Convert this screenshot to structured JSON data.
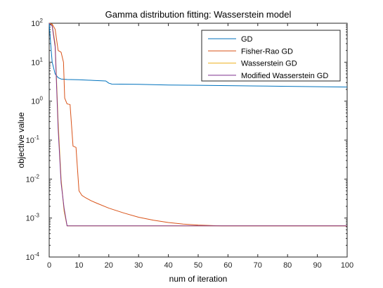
{
  "chart_data": {
    "type": "line",
    "title": "Gamma distribution fitting: Wasserstein model",
    "xlabel": "num of iteration",
    "ylabel": "objective value",
    "xlim": [
      0,
      100
    ],
    "ylim": [
      0.0001,
      100
    ],
    "yscale": "log",
    "x_ticks": [
      "0",
      "10",
      "20",
      "30",
      "40",
      "50",
      "60",
      "70",
      "80",
      "90",
      "100"
    ],
    "y_ticks": [
      {
        "base": "10",
        "exp": "2",
        "value": 100
      },
      {
        "base": "10",
        "exp": "1",
        "value": 10
      },
      {
        "base": "10",
        "exp": "0",
        "value": 1
      },
      {
        "base": "10",
        "exp": "-1",
        "value": 0.1
      },
      {
        "base": "10",
        "exp": "-2",
        "value": 0.01
      },
      {
        "base": "10",
        "exp": "-3",
        "value": 0.001
      },
      {
        "base": "10",
        "exp": "-4",
        "value": 0.0001
      }
    ],
    "grid": false,
    "legend_position": "top-right",
    "series": [
      {
        "name": "GD",
        "color": "#0072BD",
        "points": [
          [
            0,
            100
          ],
          [
            0.5,
            30
          ],
          [
            1,
            10
          ],
          [
            2,
            5
          ],
          [
            3,
            4
          ],
          [
            4,
            3.7
          ],
          [
            6,
            3.6
          ],
          [
            10,
            3.55
          ],
          [
            15,
            3.4
          ],
          [
            19,
            3.3
          ],
          [
            20,
            2.9
          ],
          [
            21,
            2.75
          ],
          [
            30,
            2.7
          ],
          [
            40,
            2.6
          ],
          [
            50,
            2.55
          ],
          [
            60,
            2.5
          ],
          [
            70,
            2.45
          ],
          [
            80,
            2.4
          ],
          [
            90,
            2.35
          ],
          [
            100,
            2.3
          ]
        ]
      },
      {
        "name": "Fisher-Rao GD",
        "color": "#D95319",
        "points": [
          [
            0,
            100
          ],
          [
            1,
            95
          ],
          [
            2,
            70
          ],
          [
            3,
            20
          ],
          [
            4,
            18
          ],
          [
            4.8,
            10
          ],
          [
            5.2,
            1.2
          ],
          [
            6,
            0.85
          ],
          [
            7,
            0.82
          ],
          [
            8,
            0.07
          ],
          [
            9,
            0.065
          ],
          [
            10,
            0.005
          ],
          [
            11,
            0.0038
          ],
          [
            12,
            0.0034
          ],
          [
            14,
            0.0028
          ],
          [
            16,
            0.0024
          ],
          [
            20,
            0.0018
          ],
          [
            25,
            0.00135
          ],
          [
            30,
            0.00105
          ],
          [
            35,
            0.00088
          ],
          [
            40,
            0.00077
          ],
          [
            45,
            0.0007
          ],
          [
            50,
            0.00066
          ],
          [
            55,
            0.00064
          ],
          [
            58,
            0.00063
          ],
          [
            100,
            0.00063
          ]
        ]
      },
      {
        "name": "Wasserstein GD",
        "color": "#EDB120",
        "points": [
          [
            0,
            100
          ],
          [
            1,
            90
          ],
          [
            2,
            30
          ],
          [
            3,
            0.3
          ],
          [
            4,
            0.01
          ],
          [
            5,
            0.0015
          ],
          [
            6,
            0.00063
          ],
          [
            100,
            0.00063
          ]
        ]
      },
      {
        "name": "Modified Wasserstein GD",
        "color": "#7E2F8E",
        "points": [
          [
            0,
            100
          ],
          [
            1,
            85
          ],
          [
            2,
            25
          ],
          [
            3,
            0.2
          ],
          [
            4,
            0.008
          ],
          [
            5,
            0.0018
          ],
          [
            6,
            0.00063
          ],
          [
            100,
            0.00063
          ]
        ]
      }
    ]
  }
}
